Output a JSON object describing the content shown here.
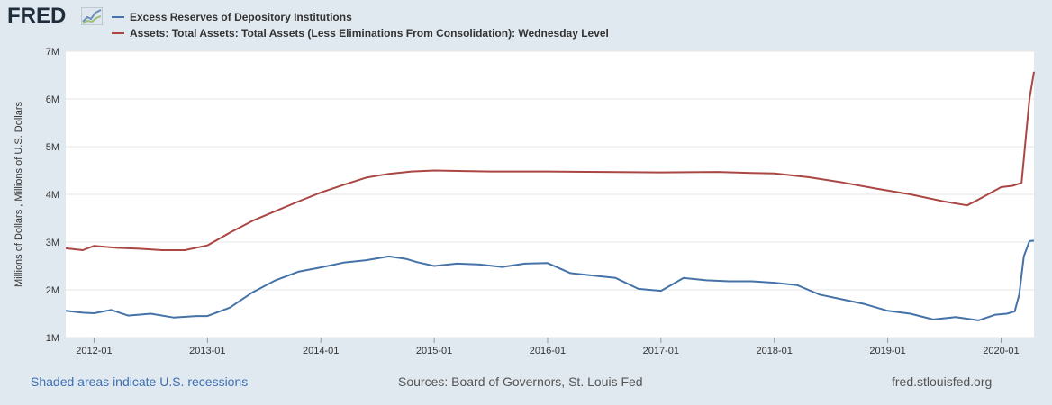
{
  "header": {
    "logo_text": "FRED",
    "logo_mark": "chart-trend-icon"
  },
  "legend": [
    {
      "label": "Excess Reserves of Depository Institutions",
      "color": "#4572a7"
    },
    {
      "label": "Assets: Total Assets: Total Assets (Less Eliminations From Consolidation): Wednesday Level",
      "color": "#aa4643"
    }
  ],
  "footer": {
    "recessions_note": "Shaded areas indicate U.S. recessions",
    "sources": "Sources: Board of Governors, St. Louis Fed",
    "site": "fred.stlouisfed.org"
  },
  "chart_data": {
    "type": "line",
    "title": "",
    "xlabel": "",
    "ylabel": "Millions of Dollars , Millions of U.S. Dollars",
    "ylim": [
      1000000,
      7000000
    ],
    "xlim": [
      2011.75,
      2020.29
    ],
    "y_ticks": [
      1000000,
      2000000,
      3000000,
      4000000,
      5000000,
      6000000,
      7000000
    ],
    "y_tick_labels": [
      "1M",
      "2M",
      "3M",
      "4M",
      "5M",
      "6M",
      "7M"
    ],
    "x_ticks": [
      2012,
      2013,
      2014,
      2015,
      2016,
      2017,
      2018,
      2019,
      2020
    ],
    "x_tick_labels": [
      "2012-01",
      "2013-01",
      "2014-01",
      "2015-01",
      "2016-01",
      "2017-01",
      "2018-01",
      "2019-01",
      "2020-01"
    ],
    "grid": true,
    "series": [
      {
        "name": "Excess Reserves of Depository Institutions",
        "color": "#4572a7",
        "x": [
          2011.75,
          2011.9,
          2012.0,
          2012.15,
          2012.3,
          2012.5,
          2012.7,
          2012.9,
          2013.0,
          2013.2,
          2013.4,
          2013.6,
          2013.8,
          2014.0,
          2014.2,
          2014.4,
          2014.6,
          2014.75,
          2014.85,
          2015.0,
          2015.2,
          2015.4,
          2015.6,
          2015.8,
          2016.0,
          2016.2,
          2016.4,
          2016.6,
          2016.8,
          2017.0,
          2017.2,
          2017.4,
          2017.6,
          2017.8,
          2018.0,
          2018.2,
          2018.4,
          2018.6,
          2018.8,
          2019.0,
          2019.2,
          2019.4,
          2019.6,
          2019.8,
          2019.95,
          2020.05,
          2020.12,
          2020.16,
          2020.2,
          2020.25,
          2020.29
        ],
        "values": [
          1560000,
          1520000,
          1510000,
          1580000,
          1460000,
          1500000,
          1420000,
          1450000,
          1450000,
          1630000,
          1950000,
          2200000,
          2380000,
          2470000,
          2570000,
          2620000,
          2700000,
          2650000,
          2580000,
          2500000,
          2550000,
          2530000,
          2480000,
          2550000,
          2560000,
          2350000,
          2300000,
          2250000,
          2020000,
          1980000,
          2250000,
          2200000,
          2180000,
          2180000,
          2150000,
          2100000,
          1900000,
          1800000,
          1700000,
          1560000,
          1500000,
          1380000,
          1430000,
          1360000,
          1480000,
          1500000,
          1550000,
          1900000,
          2700000,
          3020000,
          3030000
        ]
      },
      {
        "name": "Assets: Total Assets: Total Assets (Less Eliminations From Consolidation): Wednesday Level",
        "color": "#aa4643",
        "x": [
          2011.75,
          2011.9,
          2012.0,
          2012.2,
          2012.4,
          2012.6,
          2012.8,
          2013.0,
          2013.2,
          2013.4,
          2013.6,
          2013.8,
          2014.0,
          2014.2,
          2014.4,
          2014.6,
          2014.8,
          2015.0,
          2015.5,
          2016.0,
          2016.5,
          2017.0,
          2017.5,
          2017.8,
          2018.0,
          2018.3,
          2018.6,
          2018.9,
          2019.2,
          2019.5,
          2019.7,
          2019.8,
          2020.0,
          2020.1,
          2020.18,
          2020.22,
          2020.25,
          2020.29
        ],
        "values": [
          2870000,
          2830000,
          2920000,
          2880000,
          2860000,
          2830000,
          2830000,
          2930000,
          3200000,
          3450000,
          3650000,
          3850000,
          4040000,
          4200000,
          4350000,
          4430000,
          4480000,
          4500000,
          4480000,
          4480000,
          4470000,
          4460000,
          4470000,
          4450000,
          4440000,
          4360000,
          4250000,
          4120000,
          4000000,
          3850000,
          3770000,
          3890000,
          4150000,
          4180000,
          4240000,
          5250000,
          6000000,
          6570000
        ]
      }
    ]
  }
}
